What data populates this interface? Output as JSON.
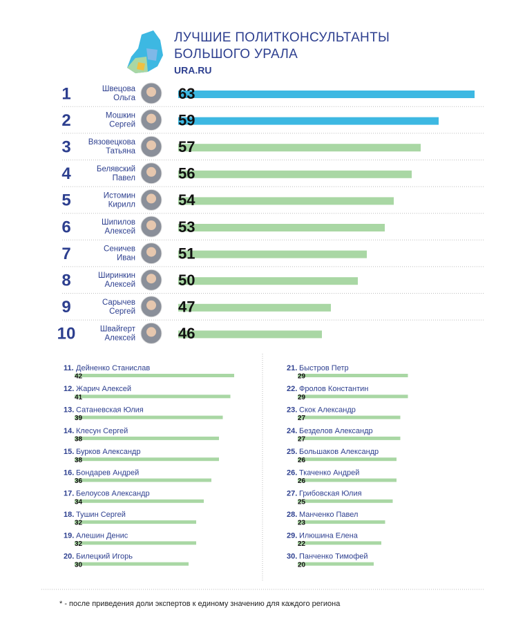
{
  "chart_data": {
    "type": "bar",
    "title": "ЛУЧШИЕ ПОЛИТКОНСУЛЬТАНТЫ БОЛЬШОГО УРАЛА",
    "source": "URA.RU",
    "top": {
      "ranks": [
        1,
        2,
        3,
        4,
        5,
        6,
        7,
        8,
        9,
        10
      ],
      "surnames": [
        "Швецова",
        "Мошкин",
        "Вязовецкова",
        "Белявский",
        "Истомин",
        "Шипилов",
        "Сеничев",
        "Ширинкин",
        "Сарычев",
        "Швайгерт"
      ],
      "given_names": [
        "Ольга",
        "Сергей",
        "Татьяна",
        "Павел",
        "Кирилл",
        "Алексей",
        "Иван",
        "Алексей",
        "Сергей",
        "Алексей"
      ],
      "values": [
        63,
        59,
        57,
        56,
        54,
        53,
        51,
        50,
        47,
        46
      ],
      "colors": [
        "#3db8e2",
        "#3db8e2",
        "#a9d7a4",
        "#a9d7a4",
        "#a9d7a4",
        "#a9d7a4",
        "#a9d7a4",
        "#a9d7a4",
        "#a9d7a4",
        "#a9d7a4"
      ]
    },
    "rest": {
      "color": "#a9d7a4",
      "columns": [
        {
          "ranks": [
            "11.",
            "12.",
            "13.",
            "14.",
            "15.",
            "16.",
            "17.",
            "18.",
            "19.",
            "20."
          ],
          "names": [
            "Дейненко Станислав",
            "Жарич Алексей",
            "Сатаневская Юлия",
            "Клесун Сергей",
            "Бурков Александр",
            "Бондарев Андрей",
            "Белоусов Александр",
            "Тушин Сергей",
            "Алешин Денис",
            "Билецкий Игорь"
          ],
          "values": [
            42,
            41,
            39,
            38,
            38,
            36,
            34,
            32,
            32,
            30
          ]
        },
        {
          "ranks": [
            "21.",
            "22.",
            "23.",
            "24.",
            "25.",
            "26.",
            "27.",
            "28.",
            "29.",
            "30."
          ],
          "names": [
            "Быстров Петр",
            "Фролов Константин",
            "Скок Александр",
            "Безделов Александр",
            "Большаков Александр",
            "Ткаченко Андрей",
            "Грибовская Юлия",
            "Манченко Павел",
            "Илюшина Елена",
            "Панченко Тимофей"
          ],
          "values": [
            29,
            29,
            27,
            27,
            26,
            26,
            25,
            23,
            22,
            20
          ]
        }
      ]
    },
    "footnote": "* - после приведения доли экспертов к единому значению для каждого региона"
  }
}
